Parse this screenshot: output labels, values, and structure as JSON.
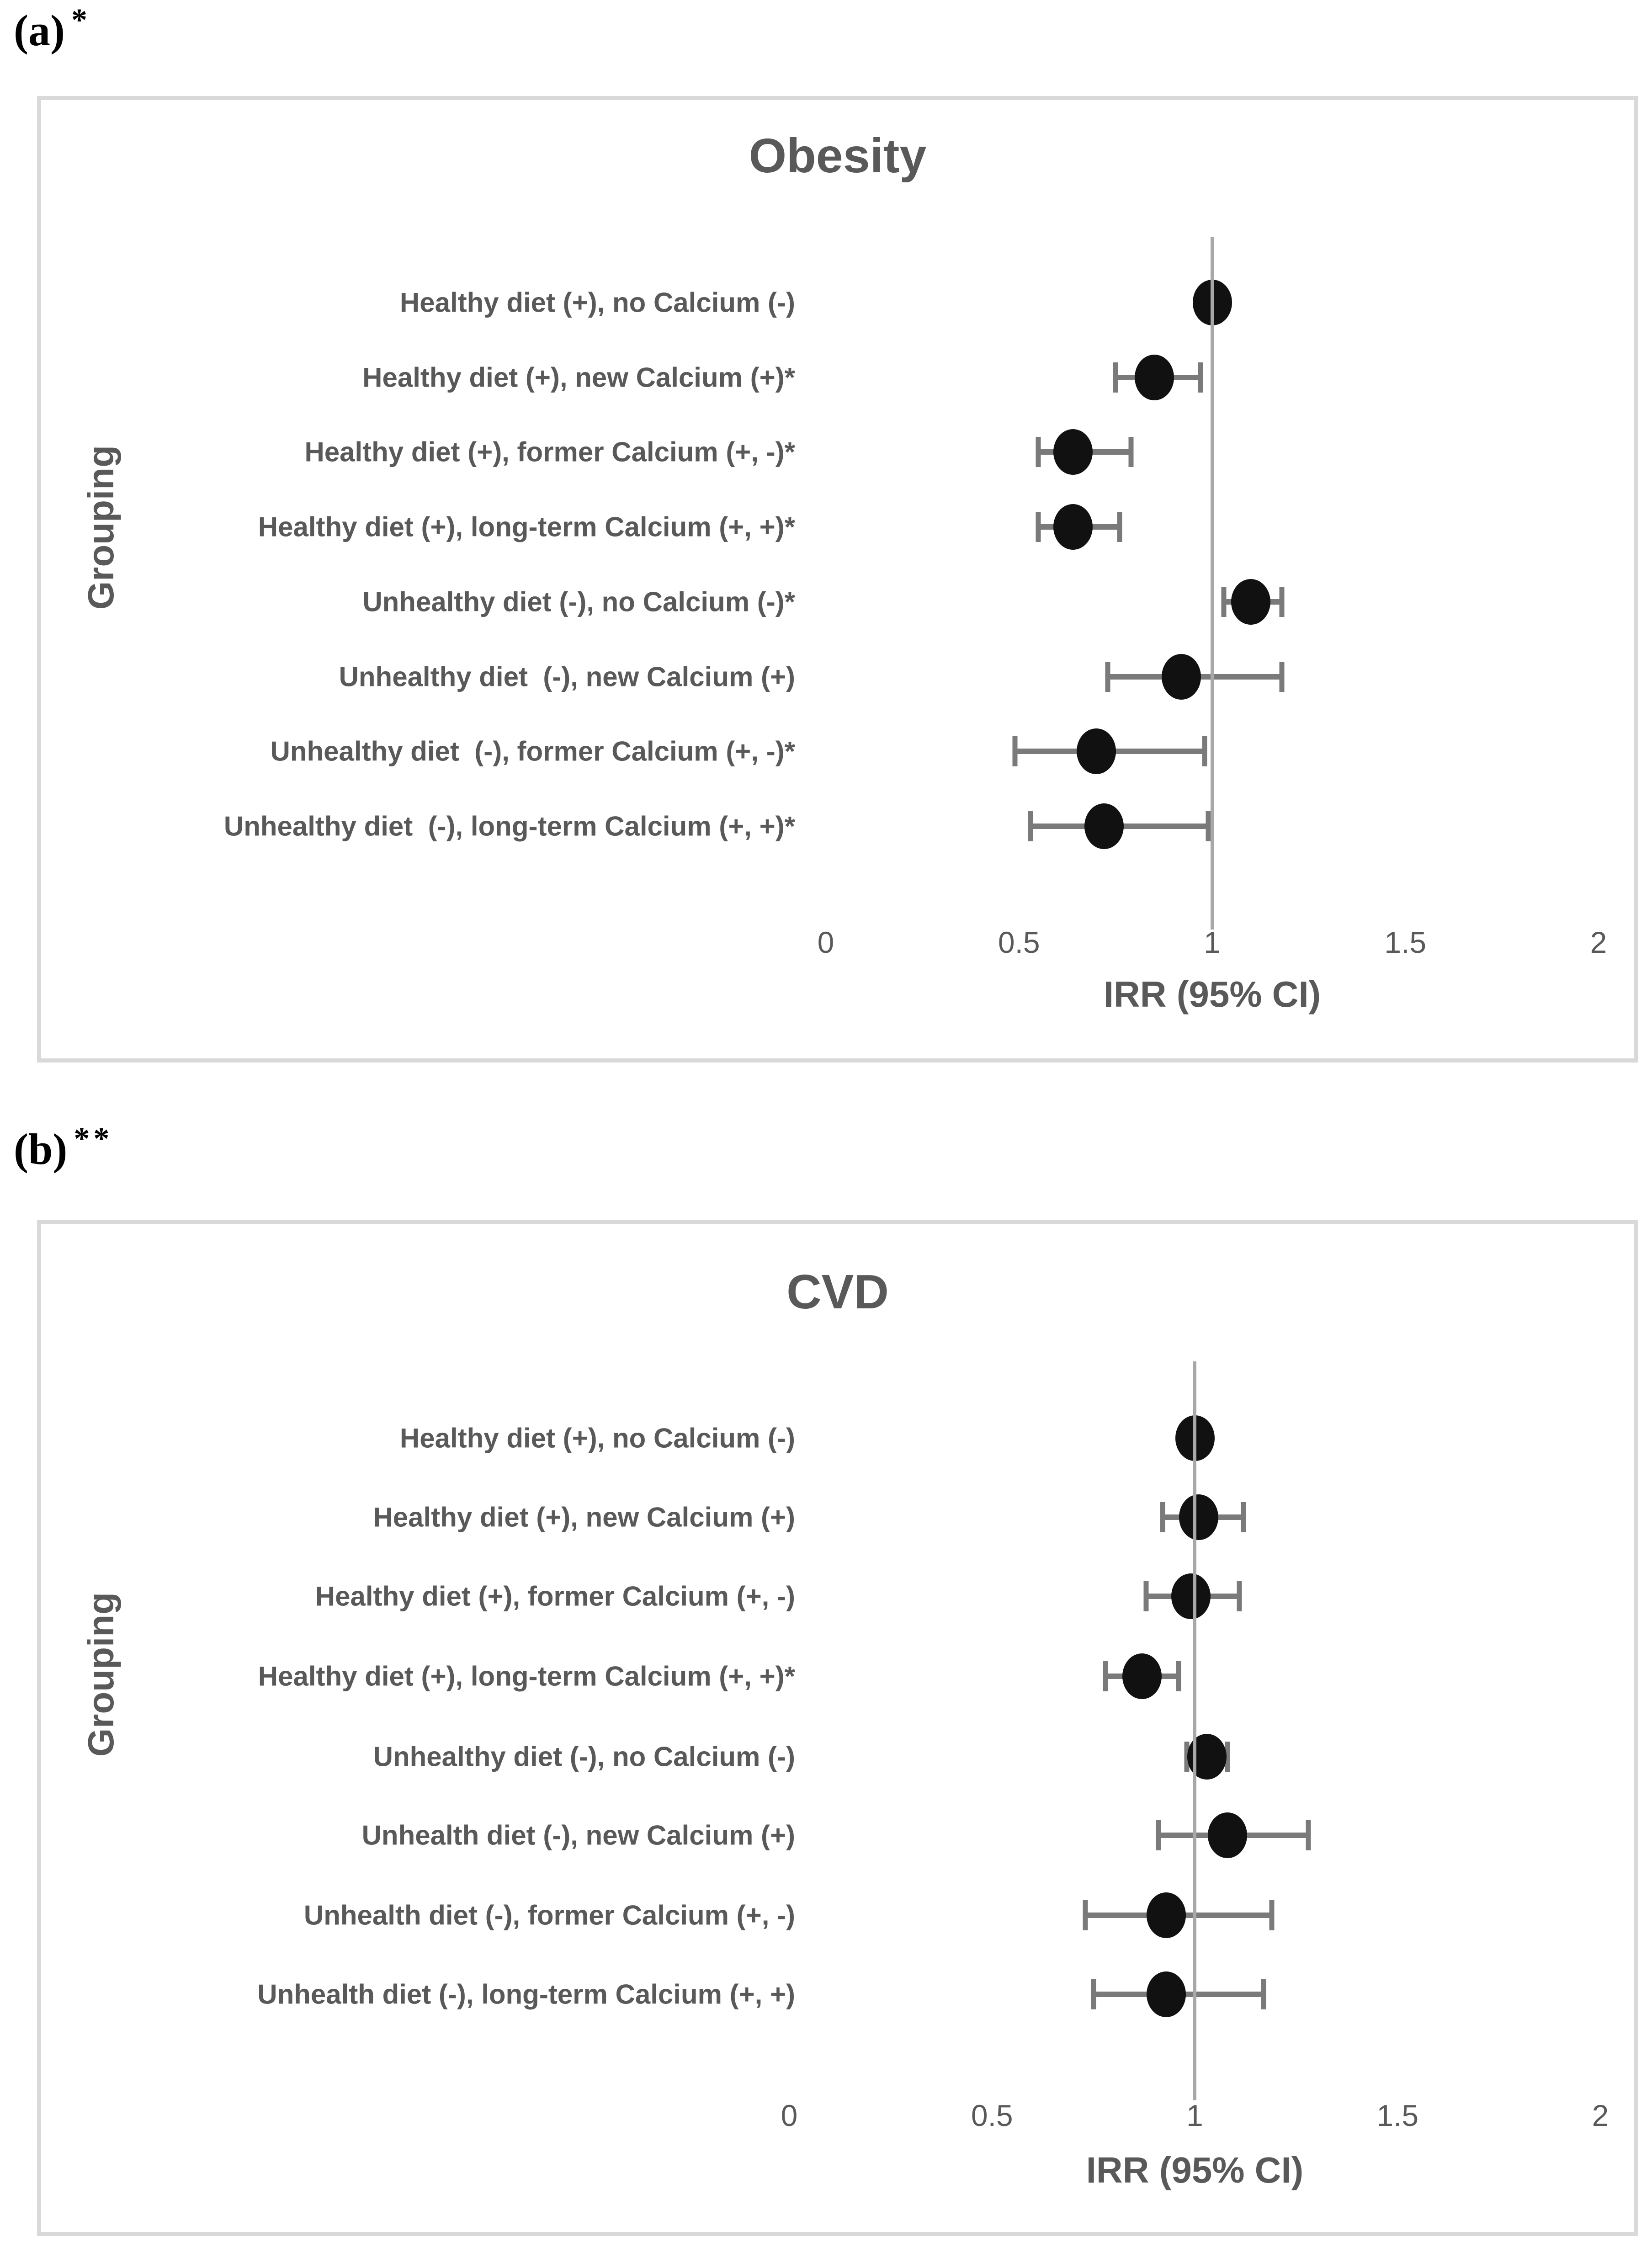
{
  "colors": {
    "text_gray": "#595959",
    "dot_black": "#111111",
    "error_bar_gray": "#7a7a7a",
    "reference_line_gray": "#a8a8a8",
    "panel_border_gray": "#d9d9d9",
    "background": "#ffffff"
  },
  "chart_data": [
    {
      "type": "scatter",
      "panel_label": "(a)",
      "panel_marker": "*",
      "title": "Obesity",
      "xlabel": "IRR (95% CI)",
      "ylabel": "Grouping",
      "xlim": [
        0,
        2
      ],
      "x_ticks": [
        "0",
        "0.5",
        "1",
        "1.5",
        "2"
      ],
      "reference_line_x": 1,
      "grid": false,
      "rows": [
        {
          "label": "Healthy diet (+), no Calcium (-)",
          "irr": 1.0,
          "ci_low": null,
          "ci_high": null
        },
        {
          "label": "Healthy diet (+), new Calcium (+)*",
          "irr": 0.85,
          "ci_low": 0.75,
          "ci_high": 0.97
        },
        {
          "label": "Healthy diet (+), former Calcium (+, -)*",
          "irr": 0.64,
          "ci_low": 0.55,
          "ci_high": 0.79
        },
        {
          "label": "Healthy diet (+), long-term Calcium (+, +)*",
          "irr": 0.64,
          "ci_low": 0.55,
          "ci_high": 0.76
        },
        {
          "label": "Unhealthy diet (-), no Calcium (-)*",
          "irr": 1.1,
          "ci_low": 1.03,
          "ci_high": 1.18
        },
        {
          "label": "Unhealthy diet  (-), new Calcium (+)",
          "irr": 0.92,
          "ci_low": 0.73,
          "ci_high": 1.18
        },
        {
          "label": "Unhealthy diet  (-), former Calcium (+, -)*",
          "irr": 0.7,
          "ci_low": 0.49,
          "ci_high": 0.98
        },
        {
          "label": "Unhealthy diet  (-), long-term Calcium (+, +)*",
          "irr": 0.72,
          "ci_low": 0.53,
          "ci_high": 0.99
        }
      ]
    },
    {
      "type": "scatter",
      "panel_label": "(b)",
      "panel_marker": "**",
      "title": "CVD",
      "xlabel": "IRR (95% CI)",
      "ylabel": "Grouping",
      "xlim": [
        0,
        2
      ],
      "x_ticks": [
        "0",
        "0.5",
        "1",
        "1.5",
        "2"
      ],
      "reference_line_x": 1,
      "grid": false,
      "rows": [
        {
          "label": "Healthy diet (+), no Calcium (-)",
          "irr": 1.0,
          "ci_low": null,
          "ci_high": null
        },
        {
          "label": "Healthy diet (+), new Calcium (+)",
          "irr": 1.01,
          "ci_low": 0.92,
          "ci_high": 1.12
        },
        {
          "label": "Healthy diet (+), former Calcium (+, -)",
          "irr": 0.99,
          "ci_low": 0.88,
          "ci_high": 1.11
        },
        {
          "label": "Healthy diet (+), long-term Calcium (+, +)*",
          "irr": 0.87,
          "ci_low": 0.78,
          "ci_high": 0.96
        },
        {
          "label": "Unhealthy diet (-), no Calcium (-)",
          "irr": 1.03,
          "ci_low": 0.98,
          "ci_high": 1.08
        },
        {
          "label": "Unhealth diet (-), new Calcium (+)",
          "irr": 1.08,
          "ci_low": 0.91,
          "ci_high": 1.28
        },
        {
          "label": "Unhealth diet (-), former Calcium (+, -)",
          "irr": 0.93,
          "ci_low": 0.73,
          "ci_high": 1.19
        },
        {
          "label": "Unhealth diet (-), long-term Calcium (+, +)",
          "irr": 0.93,
          "ci_low": 0.75,
          "ci_high": 1.17
        }
      ]
    }
  ]
}
